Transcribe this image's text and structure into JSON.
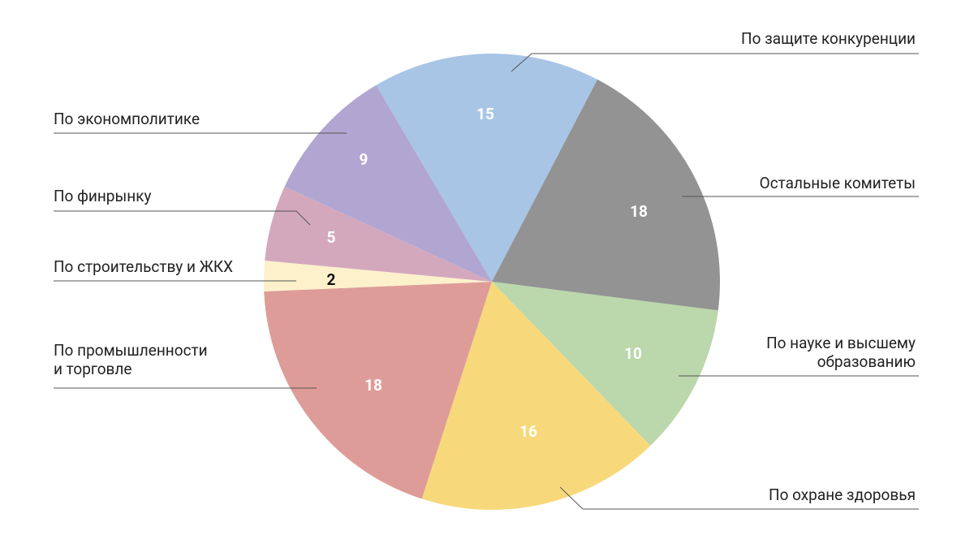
{
  "chart_data": {
    "type": "pie",
    "categories": [
      "По защите конкуренции",
      "Остальные комитеты",
      "По науке и высшему\nобразованию",
      "По охране здоровья",
      "По промышленности\nи торговле",
      "По строительству и ЖКХ",
      "По финрынку",
      "По экономполитике"
    ],
    "values": [
      15,
      18,
      10,
      16,
      18,
      2,
      5,
      9
    ],
    "colors": [
      "#a8c5e6",
      "#939393",
      "#bbd7ac",
      "#f7d97b",
      "#de9c99",
      "#fdf1cc",
      "#d3a8bd",
      "#b1a6d2"
    ]
  }
}
